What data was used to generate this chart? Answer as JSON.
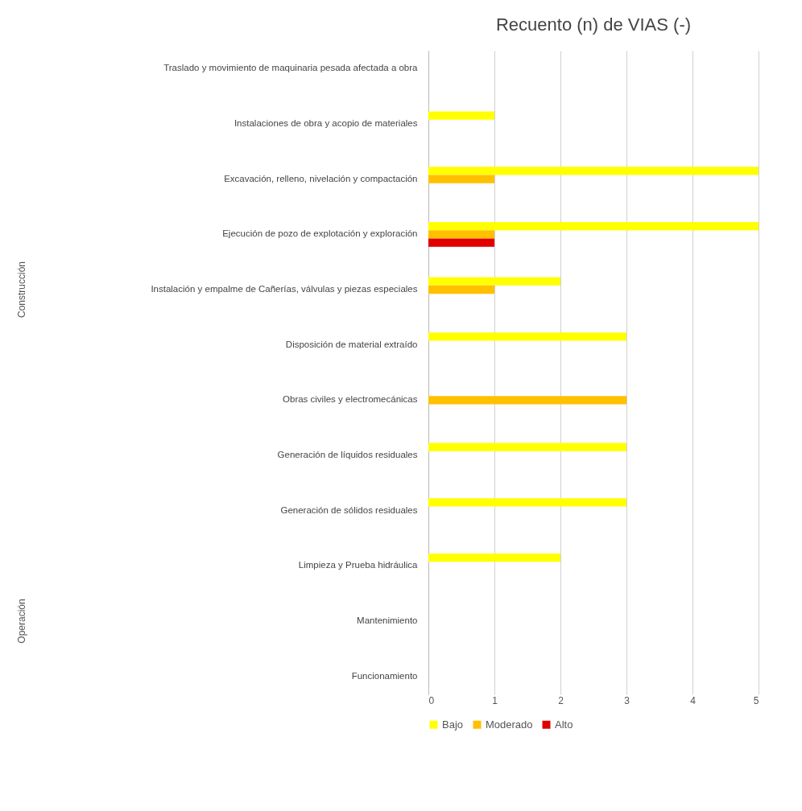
{
  "chart_data": {
    "type": "bar",
    "orientation": "horizontal",
    "title": "Recuento (n) de VIAS (-)",
    "categories": [
      "Traslado y movimiento de maquinaria pesada afectada a obra",
      "Instalaciones de obra y acopio de materiales",
      "Excavación, relleno, nivelación y compactación",
      "Ejecución de pozo de explotación y exploración",
      "Instalación y empalme de Cañerías, válvulas y piezas especiales",
      "Disposición de material extraído",
      "Obras civiles y electromecánicas",
      "Generación de líquidos residuales",
      "Generación de sólidos residuales",
      "Limpieza y Prueba hidráulica",
      "Mantenimiento",
      "Funcionamiento"
    ],
    "series": [
      {
        "name": "Bajo",
        "color": "#ffff00",
        "values": [
          null,
          1,
          5,
          5,
          2,
          3,
          null,
          3,
          3,
          2,
          null,
          null
        ]
      },
      {
        "name": "Moderado",
        "color": "#ffc000",
        "values": [
          null,
          null,
          1,
          1,
          1,
          null,
          3,
          null,
          null,
          null,
          null,
          null
        ]
      },
      {
        "name": "Alto",
        "color": "#e00000",
        "values": [
          null,
          null,
          null,
          1,
          null,
          null,
          null,
          null,
          null,
          null,
          null,
          null
        ]
      }
    ],
    "xlim": [
      0,
      5
    ],
    "xticks": [
      0,
      1,
      2,
      3,
      4,
      5
    ],
    "grid": "x",
    "legend": "bottom",
    "annotations": [
      "Construcción",
      "Operación"
    ]
  }
}
